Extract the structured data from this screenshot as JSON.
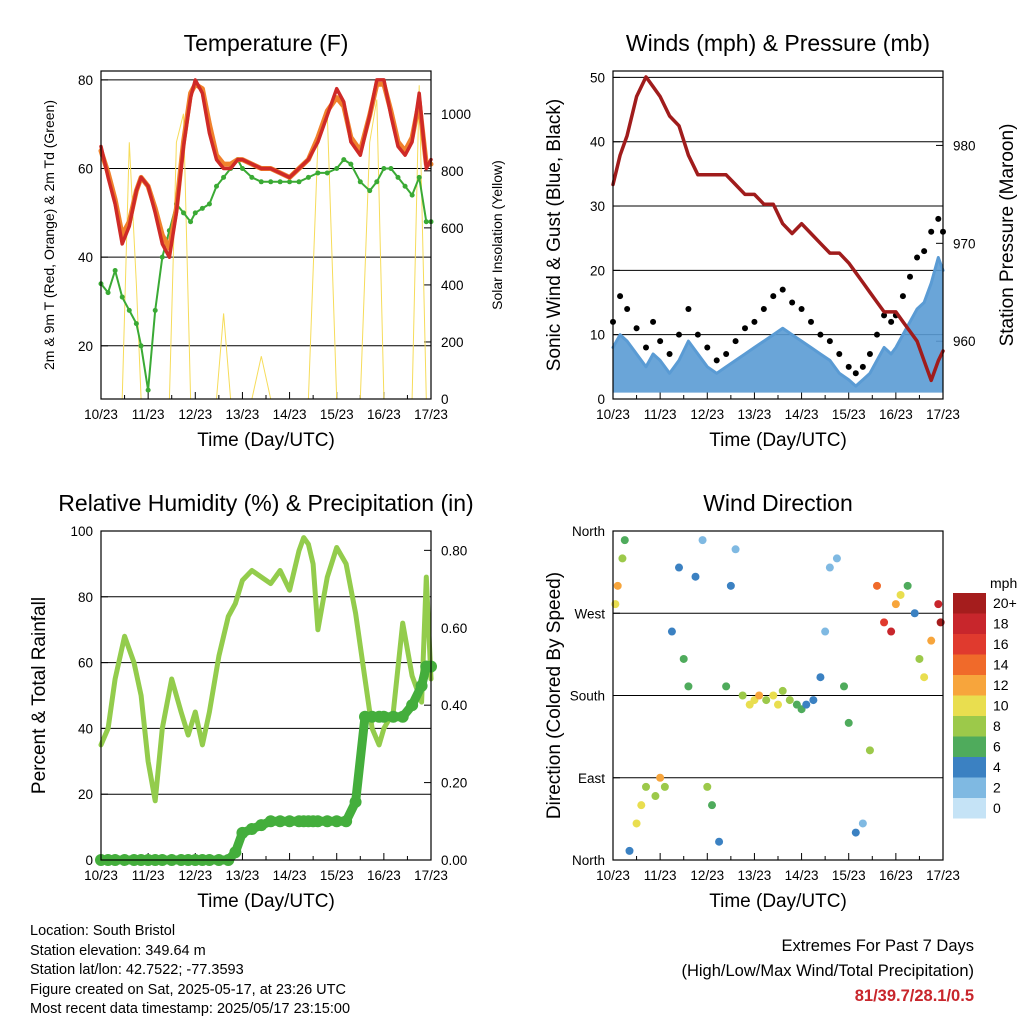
{
  "colors": {
    "temp_2m": "#cf2a27",
    "temp_9m": "#f0812c",
    "dewpoint": "#3aaa35",
    "insolation": "#f6dc5a",
    "wind": "#5a9bd4",
    "gust": "#000000",
    "pressure": "#a01c1c",
    "humidity": "#93cc4c",
    "precip": "#44ae3c",
    "extremes_values": "#c8262c"
  },
  "x_ticks": [
    "10/23",
    "11/23",
    "12/23",
    "13/23",
    "14/23",
    "15/23",
    "16/23",
    "17/23"
  ],
  "x_label": "Time (Day/UTC)",
  "chart_data": [
    {
      "id": "temperature",
      "type": "line",
      "title": "Temperature (F)",
      "ylabel": "2m & 9m T (Red, Orange) & 2m Td (Green)",
      "ylabel_right": "Solar Insolation (Yellow)",
      "ylim": [
        8,
        82
      ],
      "y_ticks": [
        20,
        40,
        60,
        80
      ],
      "y2lim": [
        0,
        1150
      ],
      "y2_ticks": [
        0,
        200,
        400,
        600,
        800,
        1000
      ],
      "reference_lines": [
        20,
        40,
        60,
        80
      ],
      "x": [
        0,
        0.15,
        0.3,
        0.45,
        0.6,
        0.75,
        0.85,
        1.0,
        1.15,
        1.3,
        1.45,
        1.6,
        1.75,
        1.9,
        2.0,
        2.15,
        2.3,
        2.45,
        2.6,
        2.75,
        2.9,
        3.0,
        3.2,
        3.4,
        3.6,
        3.8,
        4.0,
        4.2,
        4.4,
        4.6,
        4.8,
        5.0,
        5.15,
        5.3,
        5.5,
        5.7,
        5.85,
        6.0,
        6.15,
        6.3,
        6.45,
        6.6,
        6.75,
        6.9,
        7.0
      ],
      "series": [
        {
          "name": "2m T",
          "values": [
            65,
            58,
            52,
            43,
            47,
            55,
            58,
            56,
            50,
            43,
            40,
            50,
            65,
            76,
            80,
            77,
            68,
            62,
            60,
            60,
            62,
            62,
            61,
            60,
            60,
            59,
            58,
            60,
            62,
            66,
            72,
            78,
            75,
            66,
            63,
            72,
            80,
            80,
            72,
            65,
            63,
            66,
            77,
            60,
            62
          ]
        },
        {
          "name": "9m T",
          "values": [
            64,
            59,
            53,
            45,
            48,
            55,
            58,
            56,
            51,
            45,
            42,
            51,
            66,
            77,
            79,
            78,
            70,
            63,
            61,
            61,
            62,
            62,
            61,
            60,
            60,
            59,
            58,
            60,
            62,
            67,
            73,
            76,
            74,
            67,
            64,
            72,
            79,
            79,
            73,
            66,
            64,
            67,
            75,
            61,
            61
          ]
        },
        {
          "name": "2m Td",
          "values": [
            34,
            32,
            37,
            31,
            28,
            25,
            20,
            10,
            28,
            40,
            46,
            52,
            50,
            48,
            50,
            51,
            52,
            56,
            58,
            60,
            62,
            60,
            58,
            57,
            57,
            57,
            57,
            57,
            58,
            59,
            59,
            60,
            62,
            61,
            57,
            55,
            57,
            60,
            60,
            58,
            56,
            54,
            58,
            48,
            48
          ]
        },
        {
          "name": "Solar Insolation",
          "axis": "right",
          "values": [
            0,
            0,
            0,
            0,
            900,
            400,
            0,
            0,
            0,
            0,
            0,
            900,
            1000,
            0,
            0,
            0,
            0,
            0,
            300,
            0,
            0,
            0,
            0,
            150,
            0,
            0,
            0,
            0,
            0,
            900,
            1000,
            0,
            0,
            0,
            0,
            900,
            1050,
            0,
            0,
            0,
            0,
            0,
            1100,
            0,
            0
          ]
        }
      ]
    },
    {
      "id": "winds",
      "type": "line",
      "title": "Winds (mph) & Pressure (mb)",
      "ylabel": "Sonic Wind & Gust (Blue, Black)",
      "ylabel_right": "Station Pressure (Maroon)",
      "ylim": [
        0,
        51
      ],
      "y_ticks": [
        0,
        10,
        20,
        30,
        40,
        50
      ],
      "y2lim": [
        954.1,
        987.6
      ],
      "y2_ticks": [
        960,
        970,
        980
      ],
      "reference_lines": [
        10,
        20,
        30,
        40,
        50
      ],
      "x": [
        0,
        0.15,
        0.3,
        0.5,
        0.7,
        0.85,
        1.0,
        1.2,
        1.4,
        1.6,
        1.8,
        2.0,
        2.2,
        2.4,
        2.6,
        2.8,
        3.0,
        3.2,
        3.4,
        3.6,
        3.8,
        4.0,
        4.2,
        4.4,
        4.6,
        4.8,
        5.0,
        5.15,
        5.3,
        5.45,
        5.6,
        5.75,
        5.9,
        6.0,
        6.15,
        6.3,
        6.45,
        6.6,
        6.75,
        6.9,
        7.0
      ],
      "series": [
        {
          "name": "Sonic Wind",
          "values": [
            8,
            10,
            9,
            7,
            5,
            7,
            6,
            4,
            6,
            9,
            7,
            5,
            4,
            5,
            6,
            7,
            8,
            9,
            10,
            11,
            10,
            9,
            8,
            7,
            6,
            4,
            3,
            2,
            3,
            4,
            6,
            8,
            7,
            8,
            10,
            12,
            14,
            15,
            18,
            22,
            20
          ]
        },
        {
          "name": "Gust",
          "values": [
            12,
            16,
            14,
            11,
            8,
            12,
            9,
            7,
            10,
            14,
            10,
            8,
            6,
            7,
            9,
            11,
            12,
            14,
            16,
            17,
            15,
            14,
            12,
            10,
            9,
            7,
            5,
            4,
            5,
            7,
            10,
            13,
            12,
            13,
            16,
            19,
            22,
            23,
            26,
            28,
            26
          ]
        },
        {
          "name": "Station Pressure",
          "axis": "right",
          "values": [
            976,
            979,
            981,
            985,
            987,
            986,
            985,
            983,
            982,
            979,
            977,
            977,
            977,
            977,
            976,
            975,
            975,
            974,
            974,
            972,
            971,
            972,
            971,
            970,
            969,
            969,
            968,
            967,
            966,
            965,
            964,
            963,
            963,
            963,
            962,
            961,
            960,
            958,
            956,
            958,
            959
          ]
        }
      ]
    },
    {
      "id": "humidity",
      "type": "line",
      "title": "Relative Humidity (%) & Precipitation (in)",
      "ylabel": "Percent & Total Rainfall",
      "ylim": [
        0,
        100
      ],
      "y_ticks": [
        0,
        20,
        40,
        60,
        80,
        100
      ],
      "y2lim": [
        0,
        0.85
      ],
      "y2_ticks": [
        "0.00",
        "0.20",
        "0.40",
        "0.60",
        "0.80"
      ],
      "reference_lines": [
        20,
        40,
        60,
        80
      ],
      "x": [
        0,
        0.15,
        0.3,
        0.5,
        0.7,
        0.85,
        1.0,
        1.15,
        1.3,
        1.5,
        1.7,
        1.85,
        2.0,
        2.15,
        2.3,
        2.5,
        2.7,
        2.85,
        3.0,
        3.2,
        3.4,
        3.6,
        3.8,
        4.0,
        4.2,
        4.3,
        4.4,
        4.5,
        4.6,
        4.8,
        5.0,
        5.2,
        5.4,
        5.6,
        5.75,
        5.9,
        6.0,
        6.2,
        6.4,
        6.6,
        6.8,
        6.9,
        7.0
      ],
      "series": [
        {
          "name": "Relative Humidity",
          "values": [
            35,
            40,
            55,
            68,
            60,
            50,
            30,
            18,
            40,
            55,
            45,
            38,
            45,
            35,
            45,
            62,
            74,
            78,
            85,
            88,
            86,
            84,
            88,
            82,
            94,
            98,
            96,
            90,
            70,
            86,
            95,
            90,
            75,
            55,
            40,
            35,
            40,
            45,
            72,
            56,
            48,
            86,
            55
          ]
        },
        {
          "name": "Total Rainfall",
          "axis": "right",
          "values": [
            0,
            0,
            0,
            0,
            0,
            0,
            0,
            0,
            0,
            0,
            0,
            0,
            0,
            0,
            0,
            0,
            0,
            0.02,
            0.07,
            0.08,
            0.09,
            0.1,
            0.1,
            0.1,
            0.1,
            0.1,
            0.1,
            0.1,
            0.1,
            0.1,
            0.1,
            0.1,
            0.15,
            0.37,
            0.37,
            0.37,
            0.37,
            0.37,
            0.37,
            0.4,
            0.45,
            0.5,
            0.5
          ]
        }
      ]
    },
    {
      "id": "wind_direction",
      "type": "scatter",
      "title": "Wind Direction",
      "ylabel": "Direction (Colored By Speed)",
      "ylim": [
        0,
        360
      ],
      "y_ticks": [
        "North",
        "East",
        "South",
        "West",
        "North"
      ],
      "reference_lines": [
        90,
        180,
        270
      ],
      "x": [
        0.05,
        0.1,
        0.2,
        0.25,
        0.35,
        0.5,
        0.6,
        0.7,
        0.9,
        1.0,
        1.1,
        1.25,
        1.4,
        1.5,
        1.6,
        1.75,
        1.9,
        2.0,
        2.1,
        2.25,
        2.4,
        2.5,
        2.6,
        2.75,
        2.9,
        3.0,
        3.1,
        3.25,
        3.4,
        3.5,
        3.6,
        3.75,
        3.9,
        4.0,
        4.1,
        4.25,
        4.4,
        4.5,
        4.6,
        4.75,
        4.9,
        5.0,
        5.15,
        5.3,
        5.45,
        5.6,
        5.75,
        5.9,
        6.0,
        6.1,
        6.25,
        6.4,
        6.5,
        6.6,
        6.75,
        6.9,
        6.95
      ],
      "y": [
        280,
        300,
        330,
        350,
        10,
        40,
        60,
        80,
        70,
        90,
        80,
        250,
        320,
        220,
        190,
        310,
        350,
        80,
        60,
        20,
        190,
        300,
        340,
        180,
        170,
        175,
        180,
        175,
        180,
        170,
        185,
        175,
        170,
        165,
        170,
        175,
        200,
        250,
        320,
        330,
        190,
        150,
        30,
        40,
        120,
        300,
        260,
        250,
        280,
        290,
        300,
        270,
        220,
        200,
        240,
        280,
        260
      ],
      "speed": [
        10,
        12,
        8,
        6,
        4,
        9,
        10,
        8,
        7,
        12,
        8,
        4,
        3,
        6,
        5,
        3,
        2,
        8,
        6,
        4,
        5,
        3,
        2,
        8,
        10,
        9,
        11,
        8,
        10,
        9,
        8,
        7,
        6,
        5,
        4,
        3,
        4,
        2,
        1,
        2,
        6,
        5,
        3,
        2,
        8,
        14,
        16,
        18,
        12,
        10,
        6,
        4,
        8,
        10,
        12,
        18,
        20
      ],
      "colorbar": {
        "title": "mph",
        "labels": [
          "20+",
          "18",
          "16",
          "14",
          "12",
          "10",
          "8",
          "6",
          "4",
          "2",
          "0"
        ],
        "colors": [
          "#a51d1d",
          "#c8262c",
          "#e03a2e",
          "#f06a2a",
          "#f7a53c",
          "#e9de4f",
          "#9cc94a",
          "#4fab5c",
          "#3b81c2",
          "#7fb9e2",
          "#c5e3f6"
        ]
      }
    }
  ],
  "info": {
    "location": "Location: South Bristol",
    "elevation": "Station elevation: 349.64 m",
    "latlon": "Station lat/lon: 42.7522; -77.3593",
    "created": "Figure created on Sat, 2025-05-17, at 23:26 UTC",
    "timestamp": "Most recent data timestamp: 2025/05/17 23:15:00"
  },
  "extremes": {
    "title": "Extremes For Past 7 Days",
    "subtitle": "(High/Low/Max Wind/Total Precipitation)",
    "values": "81/39.7/28.1/0.5"
  }
}
